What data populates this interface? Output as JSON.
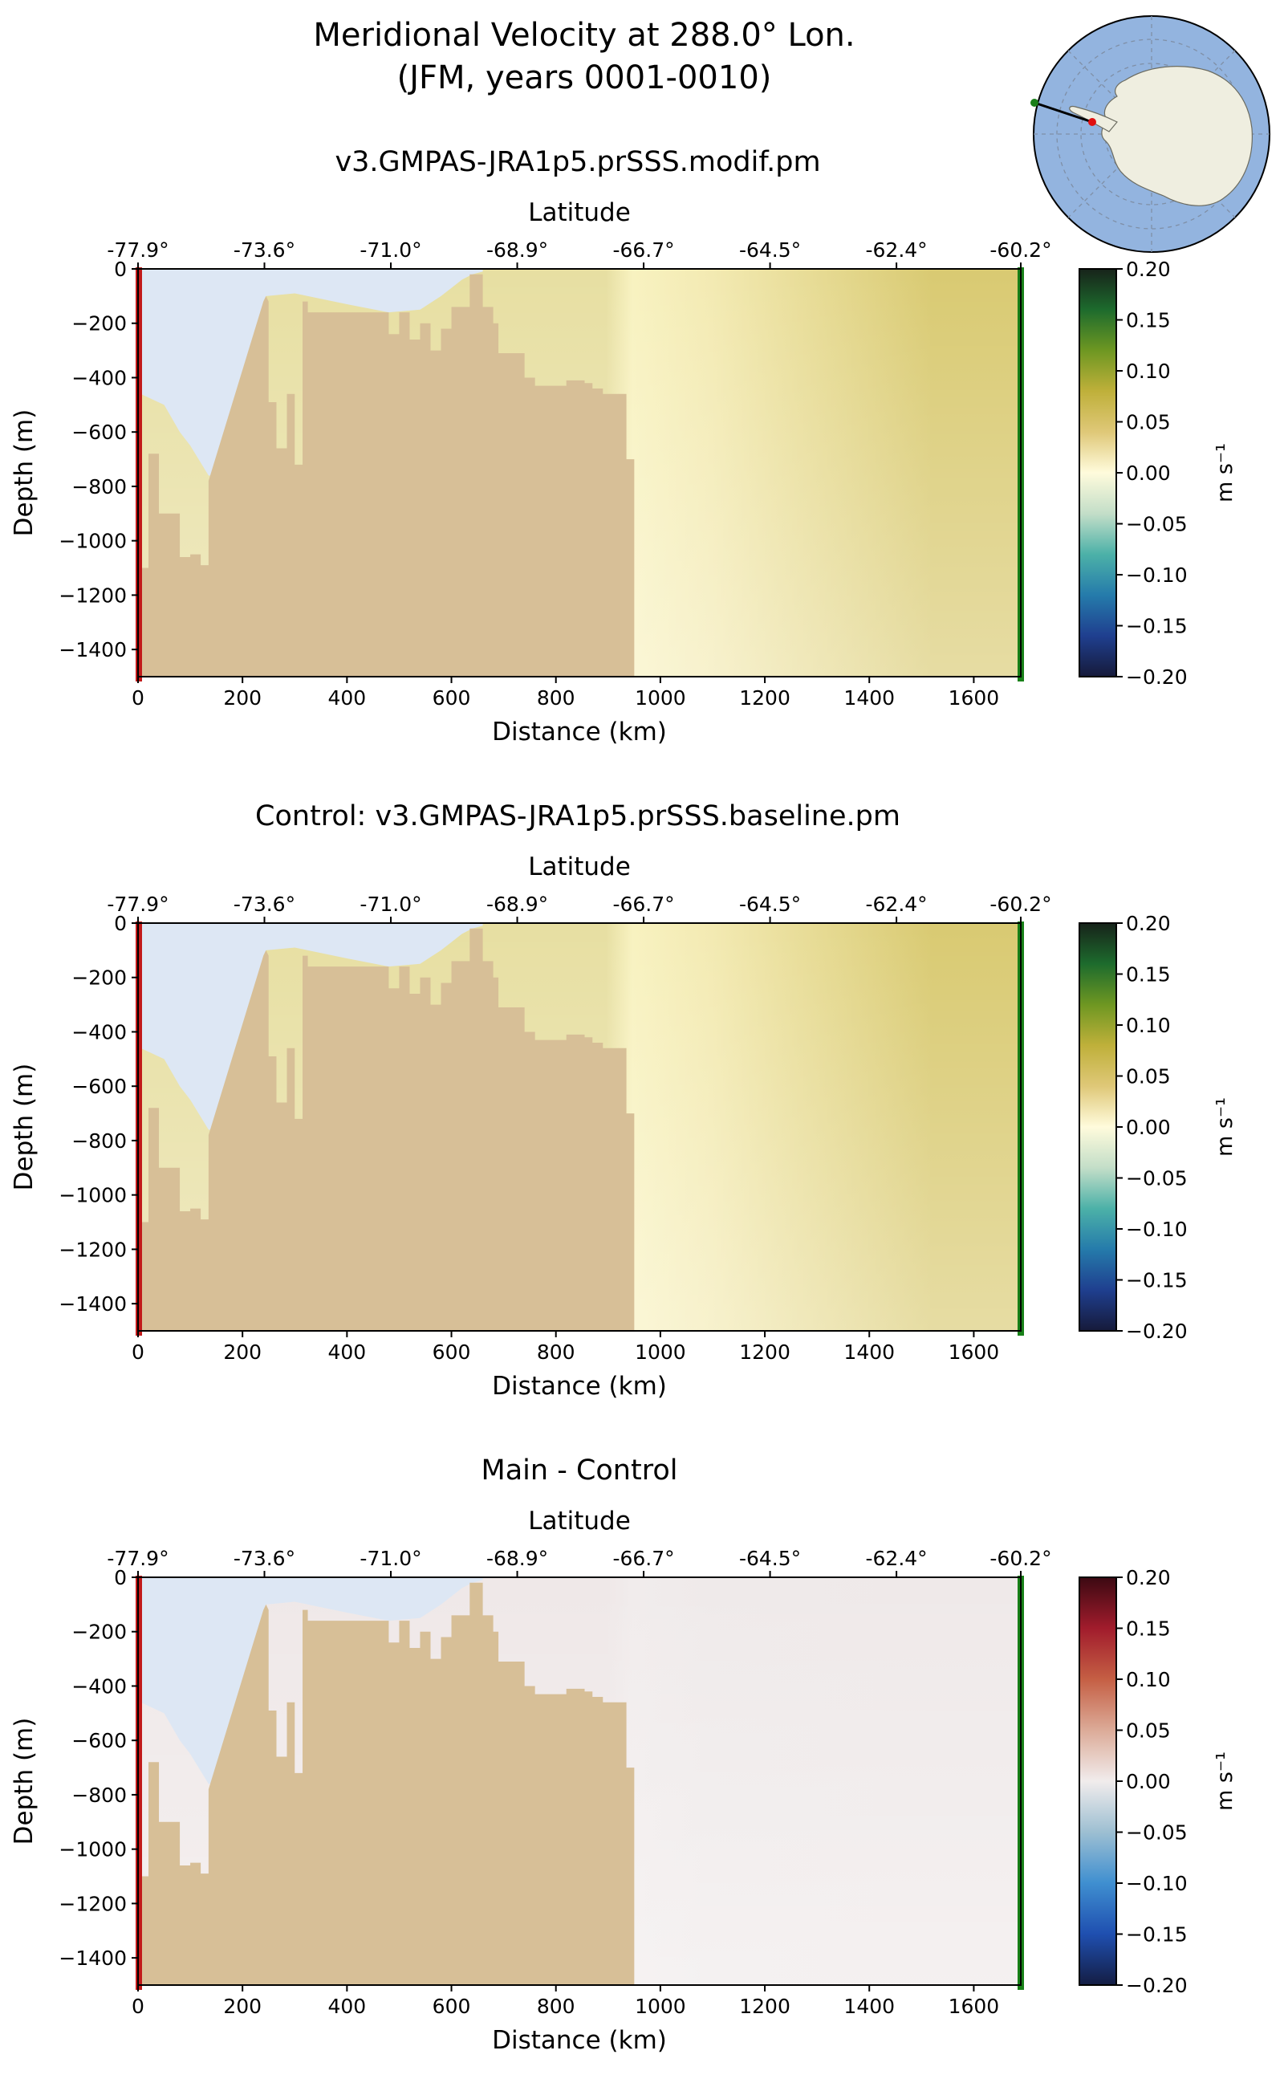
{
  "figure": {
    "title_line1": "Meridional Velocity at 288.0° Lon.",
    "title_line2": "(JFM, years 0001-0010)"
  },
  "chart_data": [
    {
      "type": "heatmap",
      "title": "v3.GMPAS-JRA1p5.prSSS.modif.pm",
      "xlabel": "Distance (km)",
      "ylabel": "Depth (m)",
      "secondary_xlabel": "Latitude",
      "xlim": [
        0,
        1690
      ],
      "ylim": [
        -1500,
        0
      ],
      "xticks": [
        0,
        200,
        400,
        600,
        800,
        1000,
        1200,
        1400,
        1600
      ],
      "xtick_labels": [
        "0",
        "200",
        "400",
        "600",
        "800",
        "1000",
        "1200",
        "1400",
        "1600"
      ],
      "yticks": [
        0,
        -200,
        -400,
        -600,
        -800,
        -1000,
        -1200,
        -1400
      ],
      "ytick_labels": [
        "0",
        "−200",
        "−400",
        "−600",
        "−800",
        "−1000",
        "−1200",
        "−1400"
      ],
      "lat_ticks": [
        0,
        242,
        484,
        726,
        968,
        1210,
        1452,
        1690
      ],
      "lat_tick_labels": [
        "-77.9°",
        "-73.6°",
        "-71.0°",
        "-68.9°",
        "-66.7°",
        "-64.5°",
        "-62.4°",
        "-60.2°"
      ],
      "colorbar": {
        "label": "m s⁻¹",
        "min": -0.2,
        "max": 0.2,
        "ticks": [
          "0.20",
          "0.15",
          "0.10",
          "0.05",
          "0.00",
          "−0.05",
          "−0.10",
          "−0.15",
          "−0.20"
        ],
        "colormap": "cmocean-delta",
        "stops": [
          "#161a3a",
          "#1f3f8f",
          "#257bab",
          "#4cb1a8",
          "#c3dec8",
          "#fffbdc",
          "#dfc878",
          "#bfb03a",
          "#6e9722",
          "#1d6b2d",
          "#17231a"
        ]
      },
      "field_colors": {
        "shelf": "#e7dfa2",
        "near_coast": "#f8f2c0",
        "offshore": "#d9ca72",
        "deep": "#f3eab2"
      }
    },
    {
      "type": "heatmap",
      "title": "Control: v3.GMPAS-JRA1p5.prSSS.baseline.pm",
      "xlabel": "Distance (km)",
      "ylabel": "Depth (m)",
      "secondary_xlabel": "Latitude",
      "xlim": [
        0,
        1690
      ],
      "ylim": [
        -1500,
        0
      ],
      "xticks": [
        0,
        200,
        400,
        600,
        800,
        1000,
        1200,
        1400,
        1600
      ],
      "xtick_labels": [
        "0",
        "200",
        "400",
        "600",
        "800",
        "1000",
        "1200",
        "1400",
        "1600"
      ],
      "yticks": [
        0,
        -200,
        -400,
        -600,
        -800,
        -1000,
        -1200,
        -1400
      ],
      "ytick_labels": [
        "0",
        "−200",
        "−400",
        "−600",
        "−800",
        "−1000",
        "−1200",
        "−1400"
      ],
      "lat_ticks": [
        0,
        242,
        484,
        726,
        968,
        1210,
        1452,
        1690
      ],
      "lat_tick_labels": [
        "-77.9°",
        "-73.6°",
        "-71.0°",
        "-68.9°",
        "-66.7°",
        "-64.5°",
        "-62.4°",
        "-60.2°"
      ],
      "colorbar": {
        "label": "m s⁻¹",
        "min": -0.2,
        "max": 0.2,
        "ticks": [
          "0.20",
          "0.15",
          "0.10",
          "0.05",
          "0.00",
          "−0.05",
          "−0.10",
          "−0.15",
          "−0.20"
        ],
        "colormap": "cmocean-delta",
        "stops": [
          "#161a3a",
          "#1f3f8f",
          "#257bab",
          "#4cb1a8",
          "#c3dec8",
          "#fffbdc",
          "#dfc878",
          "#bfb03a",
          "#6e9722",
          "#1d6b2d",
          "#17231a"
        ]
      },
      "field_colors": {
        "shelf": "#e7dfa2",
        "near_coast": "#f8f2c0",
        "offshore": "#d9ca72",
        "deep": "#f3eab2"
      }
    },
    {
      "type": "heatmap",
      "title": "Main - Control",
      "xlabel": "Distance (km)",
      "ylabel": "Depth (m)",
      "secondary_xlabel": "Latitude",
      "xlim": [
        0,
        1690
      ],
      "ylim": [
        -1500,
        0
      ],
      "xticks": [
        0,
        200,
        400,
        600,
        800,
        1000,
        1200,
        1400,
        1600
      ],
      "xtick_labels": [
        "0",
        "200",
        "400",
        "600",
        "800",
        "1000",
        "1200",
        "1400",
        "1600"
      ],
      "yticks": [
        0,
        -200,
        -400,
        -600,
        -800,
        -1000,
        -1200,
        -1400
      ],
      "ytick_labels": [
        "0",
        "−200",
        "−400",
        "−600",
        "−800",
        "−1000",
        "−1200",
        "−1400"
      ],
      "lat_ticks": [
        0,
        242,
        484,
        726,
        968,
        1210,
        1452,
        1690
      ],
      "lat_tick_labels": [
        "-77.9°",
        "-73.6°",
        "-71.0°",
        "-68.9°",
        "-66.7°",
        "-64.5°",
        "-62.4°",
        "-60.2°"
      ],
      "colorbar": {
        "label": "m s⁻¹",
        "min": -0.2,
        "max": 0.2,
        "ticks": [
          "0.20",
          "0.15",
          "0.10",
          "0.05",
          "0.00",
          "−0.05",
          "−0.10",
          "−0.15",
          "−0.20"
        ],
        "colormap": "cmocean-balance",
        "stops": [
          "#141d43",
          "#1f4fb0",
          "#3f8fd0",
          "#9dbfd2",
          "#f1ecec",
          "#dcab98",
          "#c55f44",
          "#a11c2c",
          "#3c0912"
        ]
      },
      "field_colors": {
        "shelf": "#efe8e8",
        "near_coast": "#f1ecec",
        "offshore": "#efe9e9",
        "deep": "#efeaea"
      }
    }
  ],
  "section_geometry": {
    "total_km": 1690,
    "bathymetry_km": [
      0,
      5,
      5,
      20,
      20,
      40,
      40,
      80,
      80,
      100,
      100,
      120,
      120,
      135,
      135,
      240,
      245,
      250,
      250,
      265,
      265,
      285,
      285,
      300,
      300,
      315,
      315,
      325,
      325,
      480,
      480,
      500,
      500,
      520,
      520,
      540,
      540,
      560,
      560,
      580,
      580,
      600,
      600,
      635,
      635,
      660,
      660,
      680,
      680,
      690,
      690,
      740,
      740,
      760,
      760,
      820,
      820,
      855,
      855,
      870,
      870,
      890,
      890,
      935,
      935,
      950,
      950
    ],
    "bathymetry_depth_m": [
      -1500,
      -1500,
      -1100,
      -1100,
      -680,
      -680,
      -900,
      -900,
      -1060,
      -1060,
      -1050,
      -1050,
      -1090,
      -1090,
      -780,
      -120,
      -100,
      -120,
      -490,
      -490,
      -660,
      -660,
      -460,
      -460,
      -720,
      -720,
      -120,
      -120,
      -160,
      -160,
      -240,
      -240,
      -160,
      -160,
      -260,
      -260,
      -200,
      -200,
      -300,
      -300,
      -220,
      -220,
      -140,
      -140,
      -20,
      -20,
      -140,
      -140,
      -200,
      -200,
      -310,
      -310,
      -400,
      -400,
      -430,
      -430,
      -410,
      -410,
      -420,
      -420,
      -440,
      -440,
      -460,
      -460,
      -700,
      -700,
      -1500
    ],
    "ice_shelf_km": [
      0,
      5,
      5,
      50,
      80,
      100,
      135,
      140,
      200,
      240,
      245,
      300,
      325,
      400,
      480,
      540,
      580,
      600,
      620,
      640,
      660,
      660
    ],
    "ice_shelf_depth_m": [
      0,
      0,
      -460,
      -500,
      -600,
      -650,
      -760,
      -760,
      -420,
      -120,
      -100,
      -90,
      -100,
      -130,
      -160,
      -150,
      -100,
      -70,
      -40,
      -20,
      -10,
      0
    ],
    "coast_km": 950
  },
  "inset_map": {
    "description": "south-polar stereographic locator with section line",
    "line_start_color": "#1a7f1a",
    "line_end_color": "#e01010",
    "ocean_color": "#93b4df",
    "land_color": "#efeee0"
  },
  "colors": {
    "bedrock": "#d7bf97",
    "ice_shelf": "#dde7f4",
    "start_marker": "#c21a1a",
    "end_marker": "#188018"
  }
}
